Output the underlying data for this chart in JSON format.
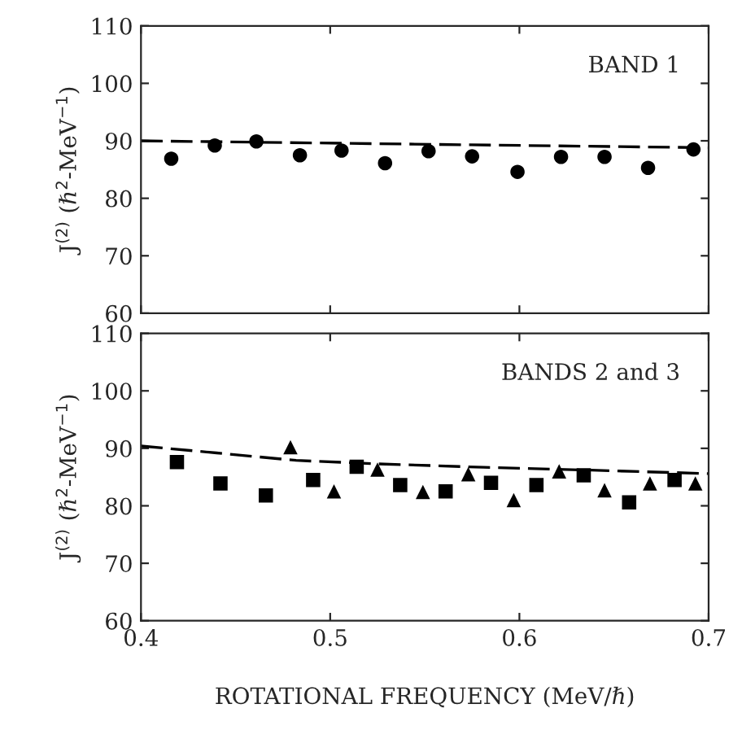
{
  "chart_data": [
    {
      "type": "scatter",
      "ylabel": "J$^{(2)}$ (ℏ$^{2}$-MeV$^{−1}$)",
      "annotations": [
        "BAND 1"
      ],
      "xlim": [
        0.4,
        0.7
      ],
      "xticks": [
        0.4,
        0.5,
        0.6,
        0.7
      ],
      "ylim": [
        60,
        110
      ],
      "yticks": [
        60,
        70,
        80,
        90,
        100,
        110
      ],
      "tick_labels": "y",
      "grid": false,
      "legend": false,
      "series": [
        {
          "marker": "circle",
          "color": "#000000",
          "x": [
            0.416,
            0.439,
            0.461,
            0.484,
            0.506,
            0.529,
            0.552,
            0.575,
            0.599,
            0.622,
            0.645,
            0.668,
            0.692
          ],
          "values": [
            86.9,
            89.2,
            89.9,
            87.5,
            88.3,
            86.1,
            88.2,
            87.3,
            84.6,
            87.2,
            87.2,
            85.3,
            88.5
          ]
        },
        {
          "type": "line",
          "line_style": "dashed",
          "marker": "none",
          "color": "#000000",
          "x": [
            0.4,
            0.7
          ],
          "values": [
            90.0,
            88.8
          ]
        }
      ]
    },
    {
      "type": "scatter",
      "ylabel": "J$^{(2)}$ (ℏ$^{2}$-MeV$^{−1}$)",
      "xlabel": "ROTATIONAL FREQUENCY (MeV/ℏ)",
      "annotations": [
        "BANDS 2 and 3"
      ],
      "xlim": [
        0.4,
        0.7
      ],
      "xticks": [
        0.4,
        0.5,
        0.6,
        0.7
      ],
      "ylim": [
        60,
        110
      ],
      "yticks": [
        60,
        70,
        80,
        90,
        100,
        110
      ],
      "grid": false,
      "legend": false,
      "series": [
        {
          "marker": "square",
          "color": "#000000",
          "x": [
            0.419,
            0.442,
            0.466,
            0.491,
            0.514,
            0.537,
            0.561,
            0.585,
            0.609,
            0.634,
            0.658,
            0.682
          ],
          "values": [
            87.6,
            83.9,
            81.8,
            84.5,
            86.8,
            83.6,
            82.5,
            84.0,
            83.6,
            85.3,
            80.6,
            84.5
          ]
        },
        {
          "marker": "triangle",
          "color": "#000000",
          "x": [
            0.479,
            0.502,
            0.525,
            0.549,
            0.573,
            0.597,
            0.621,
            0.645,
            0.669,
            0.693
          ],
          "values": [
            90.2,
            82.5,
            86.3,
            82.4,
            85.5,
            81.0,
            86.0,
            82.7,
            83.9,
            83.9
          ]
        },
        {
          "type": "line",
          "line_style": "dashed",
          "marker": "none",
          "color": "#000000",
          "x": [
            0.4,
            0.44,
            0.482,
            0.525,
            0.581,
            0.638,
            0.7
          ],
          "values": [
            90.4,
            89.2,
            87.9,
            87.3,
            86.7,
            86.2,
            85.6
          ]
        }
      ]
    }
  ]
}
